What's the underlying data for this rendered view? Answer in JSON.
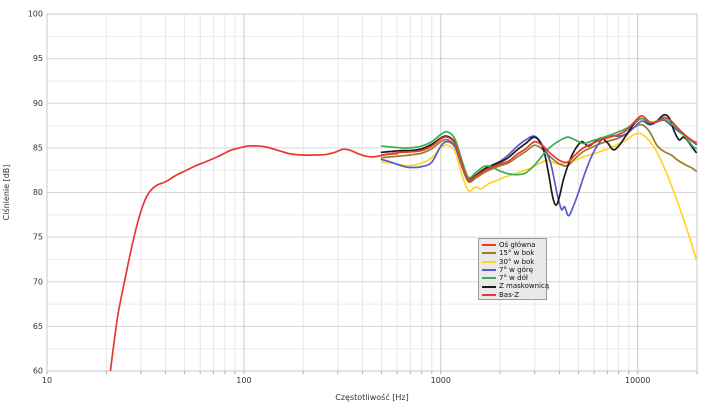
{
  "chart_data": {
    "type": "line",
    "title": "",
    "xlabel": "Częstotliwość [Hz]",
    "ylabel": "Ciśnienie [dB]",
    "x_scale": "log",
    "xlim": [
      10,
      20000
    ],
    "ylim": [
      60,
      100
    ],
    "x_tick_labels": [
      "10",
      "100",
      "1000",
      "10000"
    ],
    "x_ticks": [
      10,
      100,
      1000,
      10000
    ],
    "y_ticks": [
      60,
      65,
      70,
      75,
      80,
      85,
      90,
      95,
      100
    ],
    "y_minor_step": 2.5,
    "grid": "on",
    "legend_position": "center-right",
    "series": [
      {
        "name": "Oś główna",
        "color": "#e8392f",
        "points": [
          [
            500,
            84.2
          ],
          [
            560,
            84.35
          ],
          [
            630,
            84.5
          ],
          [
            700,
            84.55
          ],
          [
            800,
            84.7
          ],
          [
            900,
            85.2
          ],
          [
            1000,
            86.0
          ],
          [
            1080,
            86.2
          ],
          [
            1180,
            85.5
          ],
          [
            1280,
            83.2
          ],
          [
            1380,
            81.4
          ],
          [
            1500,
            81.8
          ],
          [
            1650,
            82.4
          ],
          [
            1800,
            82.8
          ],
          [
            2000,
            83.2
          ],
          [
            2200,
            83.5
          ],
          [
            2450,
            84.3
          ],
          [
            2700,
            84.9
          ],
          [
            3000,
            85.7
          ],
          [
            3300,
            85.2
          ],
          [
            3600,
            84.4
          ],
          [
            4000,
            83.6
          ],
          [
            4400,
            83.4
          ],
          [
            4800,
            84.2
          ],
          [
            5300,
            85.0
          ],
          [
            5900,
            85.5
          ],
          [
            6500,
            85.9
          ],
          [
            7200,
            86.2
          ],
          [
            8000,
            86.5
          ],
          [
            8800,
            87.0
          ],
          [
            9600,
            87.9
          ],
          [
            10500,
            88.6
          ],
          [
            11500,
            87.9
          ],
          [
            12500,
            87.9
          ],
          [
            13600,
            88.4
          ],
          [
            14800,
            88.0
          ],
          [
            16000,
            87.2
          ],
          [
            17500,
            86.4
          ],
          [
            19000,
            85.8
          ],
          [
            19800,
            85.6
          ]
        ]
      },
      {
        "name": "15° w bok",
        "color": "#9c7b22",
        "points": [
          [
            500,
            83.9
          ],
          [
            560,
            84.0
          ],
          [
            630,
            84.1
          ],
          [
            700,
            84.2
          ],
          [
            800,
            84.4
          ],
          [
            900,
            84.9
          ],
          [
            1000,
            85.7
          ],
          [
            1080,
            85.9
          ],
          [
            1180,
            85.2
          ],
          [
            1280,
            82.9
          ],
          [
            1380,
            81.2
          ],
          [
            1500,
            81.6
          ],
          [
            1650,
            82.2
          ],
          [
            1800,
            82.6
          ],
          [
            2000,
            83.0
          ],
          [
            2200,
            83.3
          ],
          [
            2450,
            84.0
          ],
          [
            2700,
            84.6
          ],
          [
            3000,
            85.3
          ],
          [
            3300,
            84.8
          ],
          [
            3600,
            84.0
          ],
          [
            4000,
            83.2
          ],
          [
            4400,
            83.0
          ],
          [
            4800,
            83.8
          ],
          [
            5300,
            84.6
          ],
          [
            5900,
            85.1
          ],
          [
            6500,
            85.5
          ],
          [
            7200,
            85.8
          ],
          [
            8000,
            86.1
          ],
          [
            8800,
            86.6
          ],
          [
            9600,
            87.3
          ],
          [
            10500,
            87.6
          ],
          [
            11500,
            86.8
          ],
          [
            12500,
            85.3
          ],
          [
            13600,
            84.6
          ],
          [
            14800,
            84.2
          ],
          [
            16000,
            83.6
          ],
          [
            17500,
            83.1
          ],
          [
            19000,
            82.7
          ],
          [
            19800,
            82.4
          ]
        ]
      },
      {
        "name": "30° w bok",
        "color": "#ffd42a",
        "points": [
          [
            500,
            83.4
          ],
          [
            560,
            83.3
          ],
          [
            630,
            83.1
          ],
          [
            700,
            83.0
          ],
          [
            800,
            83.3
          ],
          [
            900,
            83.9
          ],
          [
            1000,
            85.0
          ],
          [
            1080,
            85.3
          ],
          [
            1180,
            84.6
          ],
          [
            1280,
            82.0
          ],
          [
            1380,
            80.2
          ],
          [
            1500,
            80.6
          ],
          [
            1600,
            80.4
          ],
          [
            1750,
            81.0
          ],
          [
            1900,
            81.3
          ],
          [
            2100,
            81.7
          ],
          [
            2300,
            82.0
          ],
          [
            2600,
            82.4
          ],
          [
            2900,
            82.8
          ],
          [
            3200,
            83.3
          ],
          [
            3500,
            83.6
          ],
          [
            3900,
            83.2
          ],
          [
            4300,
            83.3
          ],
          [
            4800,
            83.6
          ],
          [
            5300,
            84.0
          ],
          [
            5900,
            84.3
          ],
          [
            6500,
            84.6
          ],
          [
            7200,
            85.0
          ],
          [
            8000,
            85.4
          ],
          [
            8800,
            85.9
          ],
          [
            9600,
            86.5
          ],
          [
            10300,
            86.6
          ],
          [
            11000,
            86.2
          ],
          [
            12000,
            85.2
          ],
          [
            13000,
            83.8
          ],
          [
            14000,
            82.2
          ],
          [
            15000,
            80.5
          ],
          [
            16200,
            78.5
          ],
          [
            17500,
            76.3
          ],
          [
            18800,
            74.2
          ],
          [
            19800,
            72.5
          ]
        ]
      },
      {
        "name": "7° w górę",
        "color": "#5b5bc8",
        "points": [
          [
            500,
            83.7
          ],
          [
            560,
            83.4
          ],
          [
            630,
            83.0
          ],
          [
            700,
            82.8
          ],
          [
            800,
            82.9
          ],
          [
            900,
            83.4
          ],
          [
            1000,
            85.2
          ],
          [
            1080,
            85.7
          ],
          [
            1180,
            85.1
          ],
          [
            1280,
            83.0
          ],
          [
            1380,
            81.5
          ],
          [
            1500,
            81.9
          ],
          [
            1650,
            82.5
          ],
          [
            1800,
            83.0
          ],
          [
            2000,
            83.5
          ],
          [
            2200,
            84.2
          ],
          [
            2450,
            85.2
          ],
          [
            2700,
            85.9
          ],
          [
            3000,
            86.3
          ],
          [
            3300,
            85.2
          ],
          [
            3600,
            83.4
          ],
          [
            3900,
            79.8
          ],
          [
            4100,
            78.1
          ],
          [
            4250,
            78.4
          ],
          [
            4450,
            77.4
          ],
          [
            4700,
            78.4
          ],
          [
            5000,
            80.0
          ],
          [
            5400,
            82.2
          ],
          [
            5900,
            84.3
          ],
          [
            6500,
            85.8
          ],
          [
            7200,
            86.4
          ],
          [
            8000,
            86.3
          ],
          [
            8800,
            86.6
          ],
          [
            9600,
            87.3
          ],
          [
            10500,
            88.0
          ],
          [
            11500,
            87.6
          ],
          [
            12500,
            87.9
          ],
          [
            13600,
            88.1
          ],
          [
            14800,
            87.5
          ],
          [
            16000,
            86.9
          ],
          [
            17500,
            86.3
          ],
          [
            19000,
            85.7
          ],
          [
            19800,
            85.4
          ]
        ]
      },
      {
        "name": "7° w dół",
        "color": "#3fad4d",
        "points": [
          [
            500,
            85.2
          ],
          [
            560,
            85.1
          ],
          [
            630,
            85.0
          ],
          [
            700,
            85.0
          ],
          [
            800,
            85.2
          ],
          [
            900,
            85.7
          ],
          [
            1000,
            86.5
          ],
          [
            1080,
            86.8
          ],
          [
            1180,
            86.0
          ],
          [
            1280,
            83.6
          ],
          [
            1380,
            81.7
          ],
          [
            1500,
            82.2
          ],
          [
            1650,
            82.9
          ],
          [
            1800,
            82.9
          ],
          [
            2000,
            82.4
          ],
          [
            2200,
            82.1
          ],
          [
            2450,
            82.0
          ],
          [
            2700,
            82.2
          ],
          [
            3000,
            83.1
          ],
          [
            3300,
            84.2
          ],
          [
            3600,
            85.1
          ],
          [
            4000,
            85.8
          ],
          [
            4400,
            86.2
          ],
          [
            4800,
            85.9
          ],
          [
            5300,
            85.5
          ],
          [
            5900,
            85.8
          ],
          [
            6500,
            86.1
          ],
          [
            7200,
            86.4
          ],
          [
            8000,
            86.8
          ],
          [
            8800,
            87.2
          ],
          [
            9600,
            87.8
          ],
          [
            10500,
            88.3
          ],
          [
            11500,
            87.8
          ],
          [
            12500,
            88.0
          ],
          [
            13600,
            88.2
          ],
          [
            14800,
            87.7
          ],
          [
            16000,
            87.1
          ],
          [
            17500,
            86.2
          ],
          [
            19000,
            85.2
          ],
          [
            19800,
            84.9
          ]
        ]
      },
      {
        "name": "Z maskownicą",
        "color": "#1b1b1b",
        "points": [
          [
            500,
            84.5
          ],
          [
            560,
            84.6
          ],
          [
            630,
            84.7
          ],
          [
            700,
            84.7
          ],
          [
            800,
            84.9
          ],
          [
            900,
            85.4
          ],
          [
            1000,
            86.1
          ],
          [
            1080,
            86.3
          ],
          [
            1180,
            85.6
          ],
          [
            1280,
            83.3
          ],
          [
            1380,
            81.4
          ],
          [
            1500,
            81.9
          ],
          [
            1650,
            82.6
          ],
          [
            1800,
            83.0
          ],
          [
            2000,
            83.4
          ],
          [
            2200,
            83.9
          ],
          [
            2450,
            84.8
          ],
          [
            2700,
            85.5
          ],
          [
            3000,
            86.2
          ],
          [
            3300,
            85.0
          ],
          [
            3500,
            82.5
          ],
          [
            3700,
            79.5
          ],
          [
            3850,
            78.6
          ],
          [
            4000,
            79.5
          ],
          [
            4200,
            81.5
          ],
          [
            4500,
            83.5
          ],
          [
            4800,
            84.8
          ],
          [
            5200,
            85.7
          ],
          [
            5600,
            85.2
          ],
          [
            6000,
            85.6
          ],
          [
            6500,
            86.1
          ],
          [
            7000,
            85.6
          ],
          [
            7500,
            84.8
          ],
          [
            8000,
            85.2
          ],
          [
            8800,
            86.5
          ],
          [
            9600,
            87.7
          ],
          [
            10500,
            88.3
          ],
          [
            11500,
            87.7
          ],
          [
            12500,
            88.0
          ],
          [
            13600,
            88.7
          ],
          [
            14500,
            88.3
          ],
          [
            15300,
            86.9
          ],
          [
            16200,
            85.9
          ],
          [
            17000,
            86.2
          ],
          [
            17800,
            85.9
          ],
          [
            19000,
            85.0
          ],
          [
            19800,
            84.5
          ]
        ]
      },
      {
        "name": "Bas-Z",
        "color": "#e8392f",
        "points": [
          [
            20.5,
            57.5
          ],
          [
            21,
            60
          ],
          [
            22,
            63.5
          ],
          [
            23,
            66.5
          ],
          [
            25,
            70.5
          ],
          [
            27,
            74
          ],
          [
            29,
            76.8
          ],
          [
            31,
            78.8
          ],
          [
            33,
            80.0
          ],
          [
            36,
            80.8
          ],
          [
            40,
            81.2
          ],
          [
            45,
            81.9
          ],
          [
            50,
            82.4
          ],
          [
            57,
            83.0
          ],
          [
            65,
            83.5
          ],
          [
            75,
            84.1
          ],
          [
            85,
            84.7
          ],
          [
            95,
            85.0
          ],
          [
            105,
            85.2
          ],
          [
            120,
            85.2
          ],
          [
            135,
            85.0
          ],
          [
            155,
            84.6
          ],
          [
            175,
            84.3
          ],
          [
            200,
            84.2
          ],
          [
            230,
            84.2
          ],
          [
            260,
            84.25
          ],
          [
            290,
            84.5
          ],
          [
            320,
            84.85
          ],
          [
            350,
            84.7
          ],
          [
            380,
            84.35
          ],
          [
            420,
            84.05
          ],
          [
            460,
            84.0
          ],
          [
            500,
            84.15
          ],
          [
            550,
            84.3
          ],
          [
            600,
            84.35
          ]
        ]
      }
    ]
  }
}
